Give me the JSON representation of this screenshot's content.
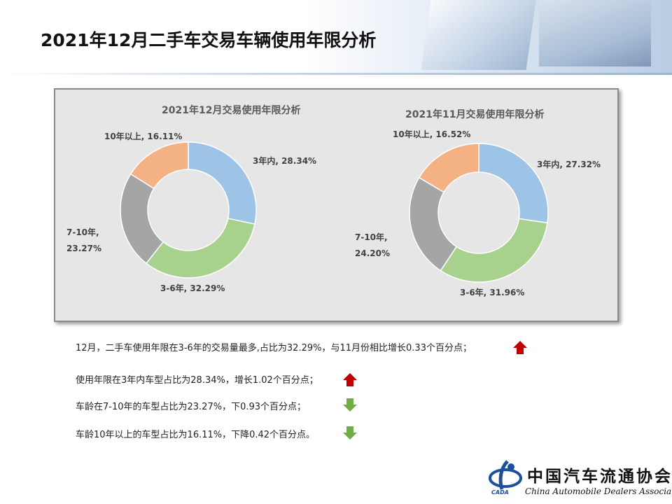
{
  "title": "2021年12月二手车交易车辆使用年限分析",
  "colors": {
    "within3": "#9dc3e6",
    "y3to6": "#a9d18e",
    "y7to10": "#a5a5a5",
    "over10": "#f4b183",
    "panel": "#e6e6e6",
    "arrow_up": "#c00000",
    "arrow_down": "#70ad47"
  },
  "chart_data": [
    {
      "type": "pie",
      "donut": true,
      "title": "2021年12月交易使用年限分析",
      "categories": [
        "3年内",
        "3-6年",
        "7-10年",
        "10年以上"
      ],
      "values": [
        28.34,
        32.29,
        23.27,
        16.11
      ],
      "labels": [
        "3年内, 28.34%",
        "3-6年, 32.29%",
        "7-10年,\n23.27%",
        "10年以上, 16.11%"
      ]
    },
    {
      "type": "pie",
      "donut": true,
      "title": "2021年11月交易使用年限分析",
      "categories": [
        "3年内",
        "3-6年",
        "7-10年",
        "10年以上"
      ],
      "values": [
        27.32,
        31.96,
        24.2,
        16.52
      ],
      "labels": [
        "3年内, 27.32%",
        "3-6年, 31.96%",
        "7-10年,\n24.20%",
        "10年以上, 16.52%"
      ]
    }
  ],
  "bullets": [
    {
      "text": "12月，二手车使用年限在3-6年的交易量最多,占比为32.29%，与11月份相比增长0.33个百分点；",
      "trend": "up"
    },
    {
      "text": "使用年限在3年内车型占比为28.34%，增长1.02个百分点；",
      "trend": "up"
    },
    {
      "text": "车龄在7-10年的车型占比为23.27%，下0.93个百分点；",
      "trend": "down"
    },
    {
      "text": "车龄10年以上的车型占比为16.11%，下降0.42个百分点。",
      "trend": "down"
    }
  ],
  "logo": {
    "name_cn": "中国汽车流通协会",
    "name_en": "China Automobile Dealers Association",
    "abbr": "CADA"
  }
}
